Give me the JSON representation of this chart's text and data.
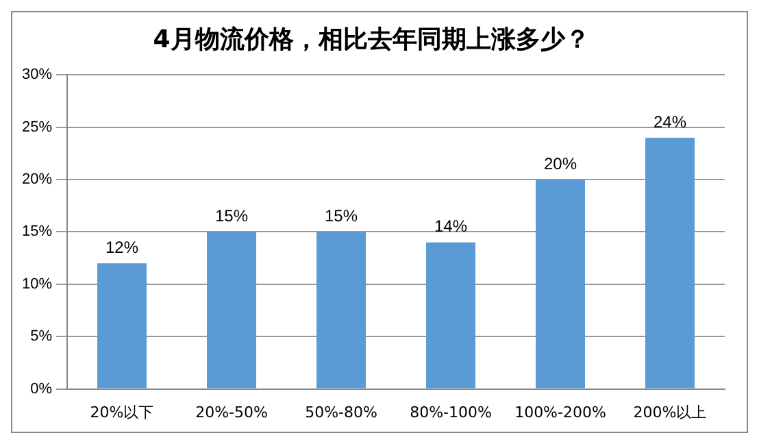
{
  "chart_data": {
    "type": "bar",
    "title": "4月物流价格，相比去年同期上涨多少？",
    "categories": [
      "20%以下",
      "20%-50%",
      "50%-80%",
      "80%-100%",
      "100%-200%",
      "200%以上"
    ],
    "values": [
      12,
      15,
      15,
      14,
      20,
      24
    ],
    "value_labels": [
      "12%",
      "15%",
      "15%",
      "14%",
      "20%",
      "24%"
    ],
    "color": "#5b9bd5",
    "ylim": [
      0,
      30
    ],
    "yticks": [
      {
        "value": 0,
        "label": "0%"
      },
      {
        "value": 5,
        "label": "5%"
      },
      {
        "value": 10,
        "label": "10%"
      },
      {
        "value": 15,
        "label": "15%"
      },
      {
        "value": 20,
        "label": "20%"
      },
      {
        "value": 25,
        "label": "25%"
      },
      {
        "value": 30,
        "label": "30%"
      }
    ],
    "grid": "y"
  }
}
